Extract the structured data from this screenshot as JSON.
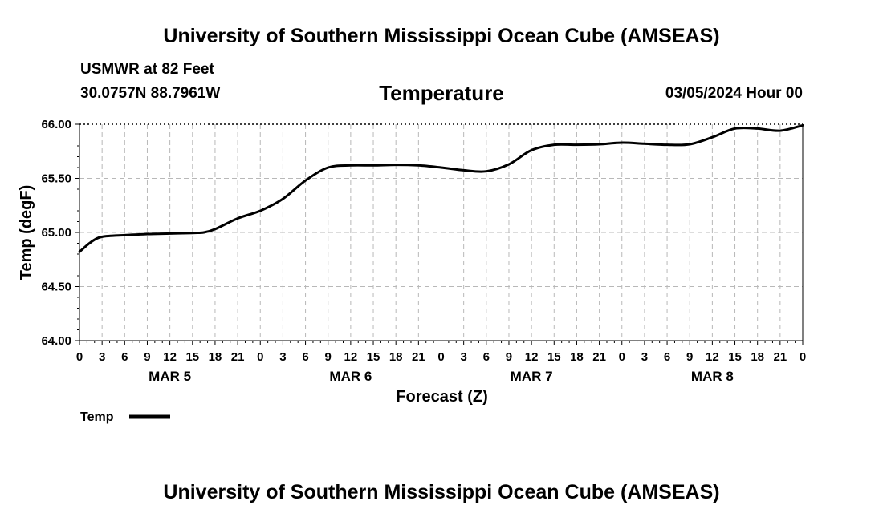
{
  "header": {
    "title_top": "University of Southern Mississippi Ocean Cube (AMSEAS)",
    "title_bottom": "University of Southern Mississippi Ocean Cube (AMSEAS)",
    "station": "USMWR at 82 Feet",
    "latlon": "30.0757N  88.7961W",
    "datetime": "03/05/2024 Hour 00"
  },
  "chart_data": {
    "type": "line",
    "title": "Temperature",
    "xlabel": "Forecast (Z)",
    "ylabel": "Temp (degF)",
    "ylim": [
      64.0,
      66.0
    ],
    "y_ticks": [
      "64.00",
      "64.50",
      "65.00",
      "65.50",
      "66.00"
    ],
    "x_range_hours": [
      0,
      96
    ],
    "x_tick_step_hours": 3,
    "x_tick_labels": [
      "0",
      "3",
      "6",
      "9",
      "12",
      "15",
      "18",
      "21",
      "0",
      "3",
      "6",
      "9",
      "12",
      "15",
      "18",
      "21",
      "0",
      "3",
      "6",
      "9",
      "12",
      "15",
      "18",
      "21",
      "0",
      "3",
      "6",
      "9",
      "12",
      "15",
      "18",
      "21",
      "0"
    ],
    "day_labels": [
      {
        "label": "MAR 5",
        "center_hour": 12
      },
      {
        "label": "MAR 6",
        "center_hour": 36
      },
      {
        "label": "MAR 7",
        "center_hour": 60
      },
      {
        "label": "MAR 8",
        "center_hour": 84
      }
    ],
    "grid": true,
    "legend": {
      "position": "bottom-left",
      "entries": [
        "Temp"
      ]
    },
    "series": [
      {
        "name": "Temp",
        "color": "#000000",
        "x": [
          0,
          1.5,
          3,
          6,
          9,
          12,
          15,
          16.5,
          18,
          21,
          24,
          27,
          30,
          33,
          36,
          39,
          42,
          45,
          48,
          51,
          54,
          57,
          60,
          63,
          66,
          69,
          72,
          75,
          78,
          81,
          84,
          87,
          90,
          93,
          96
        ],
        "values": [
          64.82,
          64.91,
          64.96,
          64.975,
          64.985,
          64.99,
          64.995,
          65.0,
          65.03,
          65.13,
          65.2,
          65.31,
          65.48,
          65.6,
          65.62,
          65.62,
          65.625,
          65.62,
          65.6,
          65.575,
          65.565,
          65.63,
          65.76,
          65.81,
          65.81,
          65.815,
          65.83,
          65.82,
          65.81,
          65.815,
          65.88,
          65.96,
          65.96,
          65.94,
          65.99
        ]
      }
    ]
  }
}
